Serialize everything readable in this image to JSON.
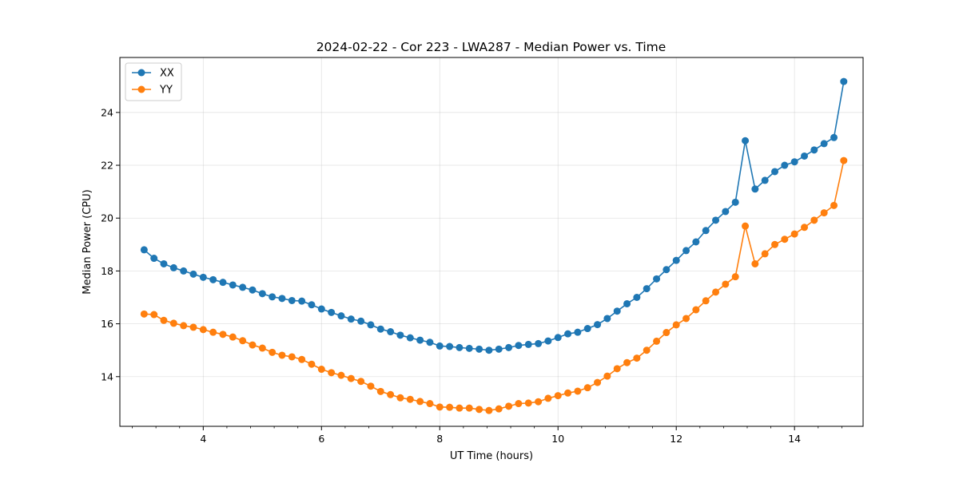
{
  "chart_data": {
    "type": "line",
    "title": "2024-02-22 - Cor 223 - LWA287 - Median Power vs. Time",
    "xlabel": "UT Time (hours)",
    "ylabel": "Median Power (CPU)",
    "xlim": [
      2.59,
      15.16
    ],
    "ylim": [
      12.12,
      26.08
    ],
    "grid": true,
    "legend_position": "top-left",
    "x_ticks": [
      4,
      6,
      8,
      10,
      12,
      14
    ],
    "x_tick_labels": [
      "4",
      "6",
      "8",
      "10",
      "12",
      "14"
    ],
    "y_ticks": [
      14,
      16,
      18,
      20,
      22,
      24
    ],
    "y_tick_labels": [
      "14",
      "16",
      "18",
      "20",
      "22",
      "24"
    ],
    "x": [
      3.0,
      3.167,
      3.333,
      3.5,
      3.667,
      3.833,
      4.0,
      4.167,
      4.333,
      4.5,
      4.667,
      4.833,
      5.0,
      5.167,
      5.333,
      5.5,
      5.667,
      5.833,
      6.0,
      6.167,
      6.333,
      6.5,
      6.667,
      6.833,
      7.0,
      7.167,
      7.333,
      7.5,
      7.667,
      7.833,
      8.0,
      8.167,
      8.333,
      8.5,
      8.667,
      8.833,
      9.0,
      9.167,
      9.333,
      9.5,
      9.667,
      9.833,
      10.0,
      10.167,
      10.333,
      10.5,
      10.667,
      10.833,
      11.0,
      11.167,
      11.333,
      11.5,
      11.667,
      11.833,
      12.0,
      12.167,
      12.333,
      12.5,
      12.667,
      12.833,
      13.0,
      13.167,
      13.333,
      13.5,
      13.667,
      13.833,
      14.0,
      14.167,
      14.333,
      14.5,
      14.667,
      14.833
    ],
    "series": [
      {
        "name": "XX",
        "color": "#1f77b4",
        "values": [
          18.8,
          18.48,
          18.27,
          18.12,
          18.0,
          17.88,
          17.76,
          17.67,
          17.57,
          17.47,
          17.38,
          17.28,
          17.14,
          17.02,
          16.96,
          16.88,
          16.86,
          16.72,
          16.56,
          16.43,
          16.3,
          16.18,
          16.1,
          15.96,
          15.8,
          15.7,
          15.57,
          15.47,
          15.38,
          15.3,
          15.16,
          15.14,
          15.1,
          15.07,
          15.04,
          15.0,
          15.04,
          15.1,
          15.18,
          15.22,
          15.25,
          15.35,
          15.48,
          15.62,
          15.68,
          15.82,
          15.97,
          16.2,
          16.48,
          16.76,
          17.0,
          17.33,
          17.7,
          18.05,
          18.4,
          18.77,
          19.1,
          19.53,
          19.92,
          20.25,
          20.6,
          22.93,
          21.1,
          21.43,
          21.76,
          22.0,
          22.13,
          22.35,
          22.58,
          22.82,
          23.05,
          25.17
        ]
      },
      {
        "name": "YY",
        "color": "#ff7f0e",
        "values": [
          16.37,
          16.35,
          16.13,
          16.02,
          15.93,
          15.87,
          15.78,
          15.68,
          15.6,
          15.5,
          15.36,
          15.2,
          15.08,
          14.92,
          14.81,
          14.75,
          14.65,
          14.47,
          14.28,
          14.15,
          14.05,
          13.93,
          13.82,
          13.64,
          13.44,
          13.32,
          13.2,
          13.14,
          13.06,
          12.98,
          12.85,
          12.84,
          12.81,
          12.81,
          12.76,
          12.72,
          12.78,
          12.88,
          12.98,
          13.0,
          13.05,
          13.18,
          13.28,
          13.38,
          13.45,
          13.58,
          13.78,
          14.02,
          14.3,
          14.53,
          14.7,
          15.0,
          15.34,
          15.67,
          15.96,
          16.2,
          16.53,
          16.87,
          17.2,
          17.5,
          17.78,
          19.7,
          18.27,
          18.65,
          19.0,
          19.2,
          19.4,
          19.65,
          19.92,
          20.2,
          20.48,
          22.18
        ]
      }
    ]
  }
}
